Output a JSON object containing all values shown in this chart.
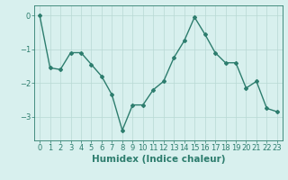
{
  "x": [
    0,
    1,
    2,
    3,
    4,
    5,
    6,
    7,
    8,
    9,
    10,
    11,
    12,
    13,
    14,
    15,
    16,
    17,
    18,
    19,
    20,
    21,
    22,
    23
  ],
  "y": [
    0.0,
    -1.55,
    -1.6,
    -1.1,
    -1.1,
    -1.45,
    -1.8,
    -2.35,
    -3.4,
    -2.65,
    -2.65,
    -2.2,
    -1.95,
    -1.25,
    -0.75,
    -0.05,
    -0.55,
    -1.1,
    -1.4,
    -1.4,
    -2.15,
    -1.95,
    -2.75,
    -2.85
  ],
  "title": "",
  "xlabel": "Humidex (Indice chaleur)",
  "ylabel": "",
  "ylim": [
    -3.7,
    0.3
  ],
  "yticks": [
    0,
    -1,
    -2,
    -3
  ],
  "xlim": [
    -0.5,
    23.5
  ],
  "xticks": [
    0,
    1,
    2,
    3,
    4,
    5,
    6,
    7,
    8,
    9,
    10,
    11,
    12,
    13,
    14,
    15,
    16,
    17,
    18,
    19,
    20,
    21,
    22,
    23
  ],
  "line_color": "#2d7d6e",
  "marker": "D",
  "marker_size": 2.0,
  "bg_color": "#d8f0ee",
  "grid_color": "#b8d8d4",
  "axes_color": "#2d7d6e",
  "label_color": "#2d7d6e",
  "tick_label_color": "#2d7d6e",
  "tick_fontsize": 6.0,
  "xlabel_fontsize": 7.5,
  "linewidth": 1.0
}
